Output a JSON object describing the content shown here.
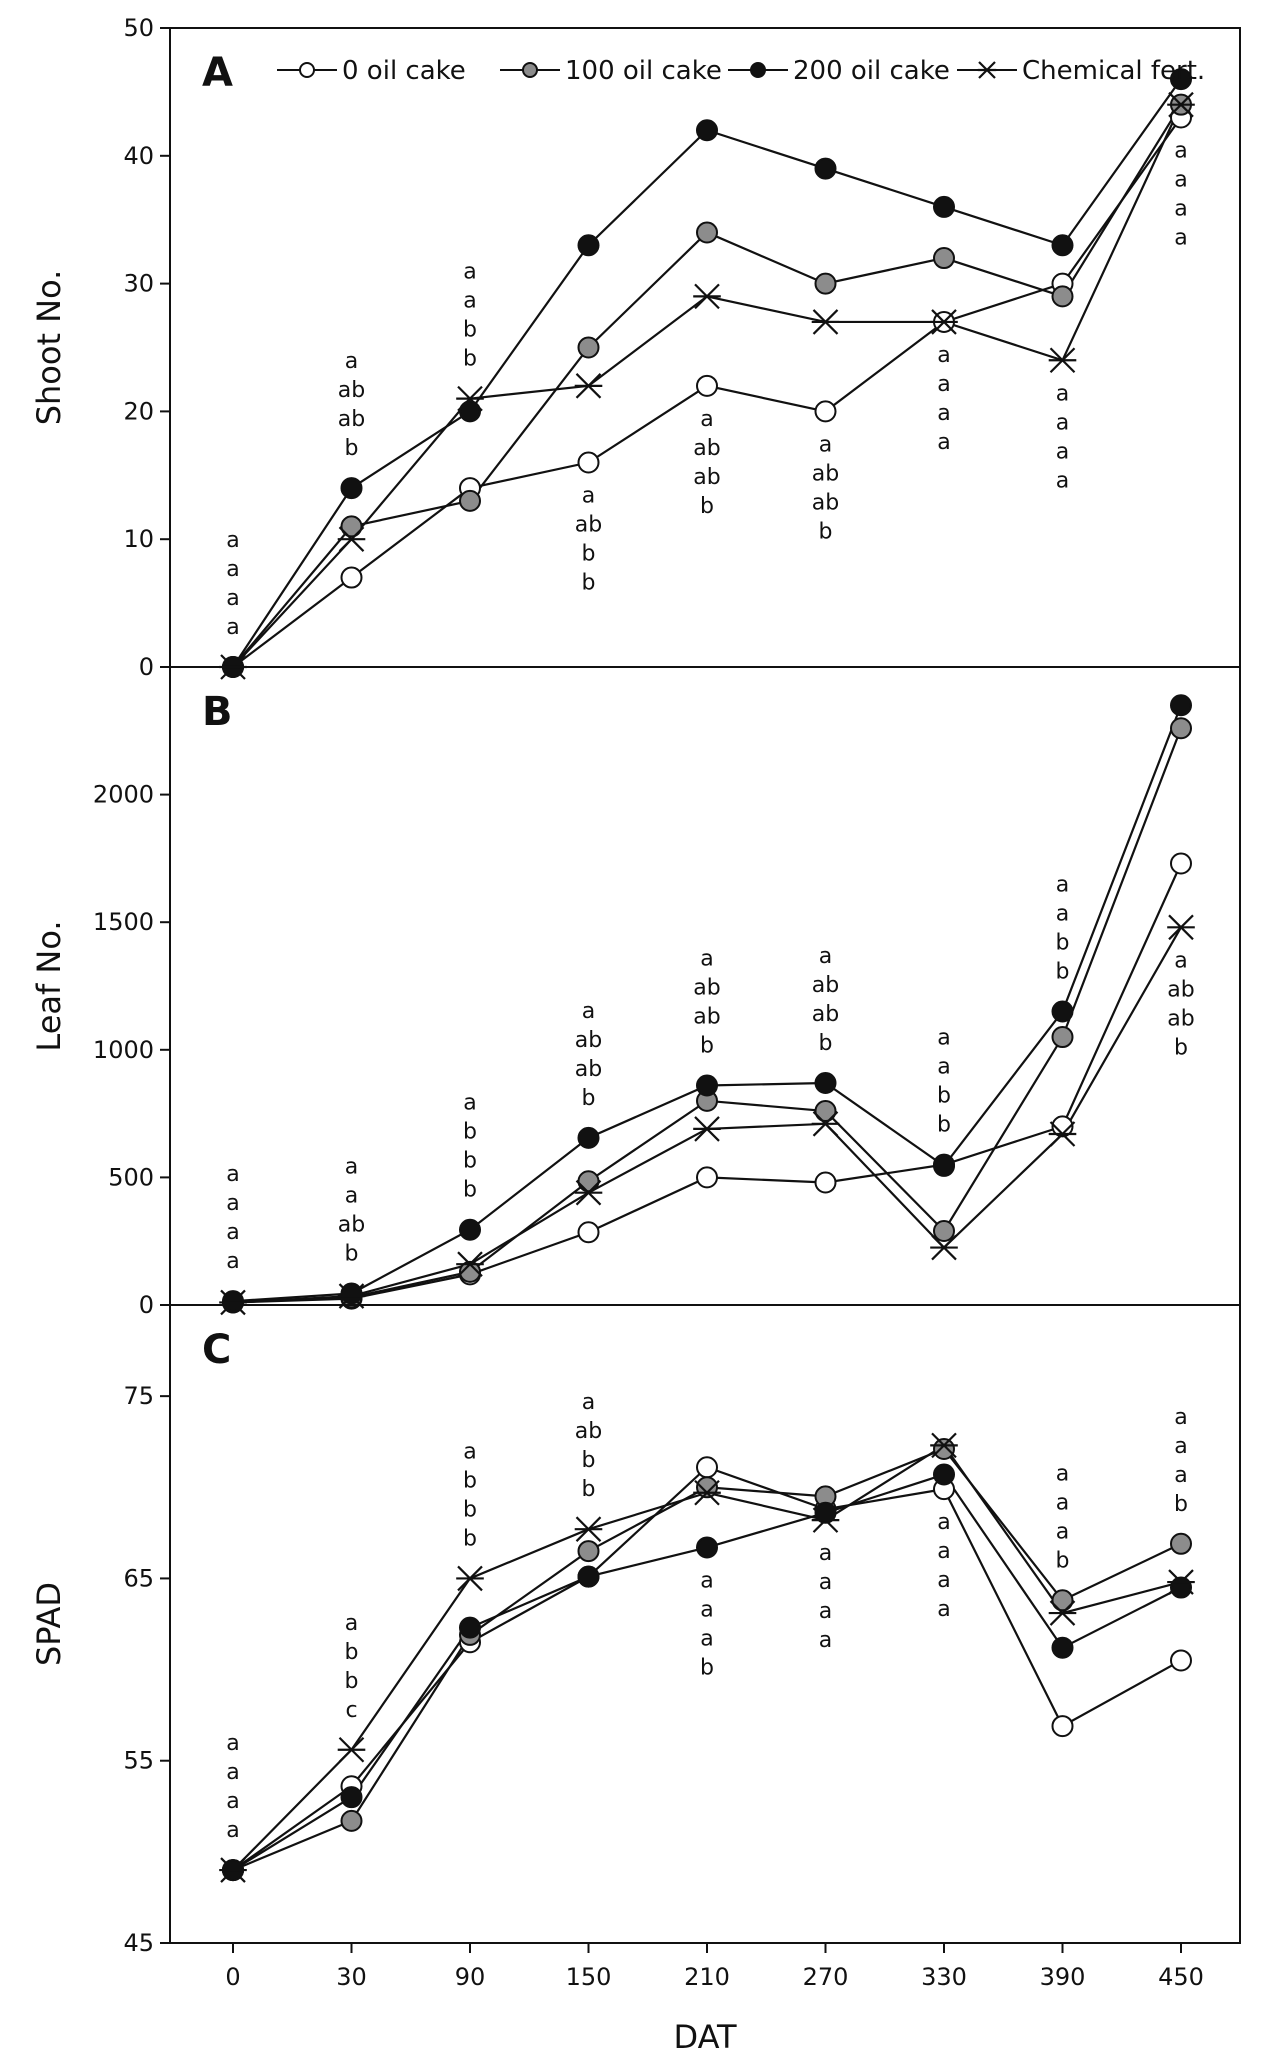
{
  "colors": {
    "open": "#ffffff",
    "gray": "#8c8c8c",
    "black": "#111111",
    "line": "#111111"
  },
  "chart_data": {
    "type": "line",
    "xlabel": "DAT",
    "x": [
      0,
      30,
      90,
      150,
      210,
      270,
      330,
      390,
      450
    ],
    "series_legend": [
      {
        "name": "0 oil cake",
        "marker": "open-circle"
      },
      {
        "name": "100 oil cake",
        "marker": "gray-circle"
      },
      {
        "name": "200 oil cake",
        "marker": "black-circle"
      },
      {
        "name": "Chemical fert.",
        "marker": "star"
      }
    ],
    "panels": [
      {
        "letter": "A",
        "ylabel": "Shoot No.",
        "ylim": [
          0,
          50
        ],
        "yticks": [
          0,
          10,
          20,
          30,
          40,
          50
        ],
        "series": [
          {
            "name": "0 oil cake",
            "values": [
              0,
              7,
              14,
              16,
              22,
              20,
              27,
              30,
              43
            ]
          },
          {
            "name": "100 oil cake",
            "values": [
              0,
              11,
              13,
              25,
              34,
              30,
              32,
              29,
              44
            ]
          },
          {
            "name": "200 oil cake",
            "values": [
              0,
              14,
              20,
              33,
              42,
              39,
              36,
              33,
              46
            ]
          },
          {
            "name": "Chemical fert.",
            "values": [
              0,
              10,
              21,
              22,
              29,
              27,
              27,
              24,
              44
            ]
          }
        ],
        "significance": [
          [
            "a",
            "a",
            "a",
            "a"
          ],
          [
            "a",
            "ab",
            "ab",
            "b"
          ],
          [
            "a",
            "a",
            "b",
            "b"
          ],
          [
            "a",
            "ab",
            "b",
            "b"
          ],
          [
            "a",
            "ab",
            "ab",
            "b"
          ],
          [
            "a",
            "ab",
            "ab",
            "b"
          ],
          [
            "a",
            "a",
            "a",
            "a"
          ],
          [
            "a",
            "a",
            "a",
            "a"
          ],
          [
            "a",
            "a",
            "a",
            "a"
          ]
        ]
      },
      {
        "letter": "B",
        "ylabel": "Leaf No.",
        "ylim": [
          0,
          2500
        ],
        "yticks": [
          0,
          500,
          1000,
          1500,
          2000
        ],
        "series": [
          {
            "name": "0 oil cake",
            "values": [
              10,
              25,
              120,
              285,
              500,
              480,
              550,
              700,
              1730
            ]
          },
          {
            "name": "100 oil cake",
            "values": [
              10,
              30,
              130,
              485,
              800,
              760,
              290,
              1050,
              2260
            ]
          },
          {
            "name": "200 oil cake",
            "values": [
              15,
              45,
              295,
              655,
              860,
              870,
              545,
              1150,
              2350
            ]
          },
          {
            "name": "Chemical fert.",
            "values": [
              10,
              35,
              160,
              440,
              690,
              710,
              225,
              670,
              1480
            ]
          }
        ],
        "significance": [
          [
            "a",
            "a",
            "a",
            "a"
          ],
          [
            "a",
            "a",
            "ab",
            "b"
          ],
          [
            "a",
            "b",
            "b",
            "b"
          ],
          [
            "a",
            "ab",
            "ab",
            "b"
          ],
          [
            "a",
            "ab",
            "ab",
            "b"
          ],
          [
            "a",
            "ab",
            "ab",
            "b"
          ],
          [
            "a",
            "a",
            "b",
            "b"
          ],
          [
            "a",
            "a",
            "b",
            "b"
          ],
          [
            "a",
            "ab",
            "ab",
            "b"
          ]
        ]
      },
      {
        "letter": "C",
        "ylabel": "SPAD",
        "ylim": [
          45,
          80
        ],
        "yticks": [
          45,
          55,
          65,
          75
        ],
        "series": [
          {
            "name": "0 oil cake",
            "values": [
              49,
              53.6,
              61.5,
              65.1,
              71.1,
              68.8,
              69.9,
              56.9,
              60.5
            ]
          },
          {
            "name": "100 oil cake",
            "values": [
              49,
              51.7,
              61.9,
              66.5,
              70.0,
              69.5,
              72.1,
              63.8,
              66.9
            ]
          },
          {
            "name": "200 oil cake",
            "values": [
              49,
              53.0,
              62.3,
              65.1,
              66.7,
              68.6,
              70.7,
              61.2,
              64.5
            ]
          },
          {
            "name": "Chemical fert.",
            "values": [
              49,
              55.6,
              65.0,
              67.7,
              69.7,
              68.2,
              72.3,
              63.1,
              64.8
            ]
          }
        ],
        "significance": [
          [
            "a",
            "a",
            "a",
            "a"
          ],
          [
            "a",
            "b",
            "b",
            "c"
          ],
          [
            "a",
            "b",
            "b",
            "b"
          ],
          [
            "a",
            "ab",
            "b",
            "b"
          ],
          [
            "a",
            "a",
            "a",
            "b"
          ],
          [
            "a",
            "a",
            "a",
            "a"
          ],
          [
            "a",
            "a",
            "a",
            "a"
          ],
          [
            "a",
            "a",
            "a",
            "b"
          ],
          [
            "a",
            "a",
            "a",
            "b"
          ]
        ]
      }
    ]
  }
}
